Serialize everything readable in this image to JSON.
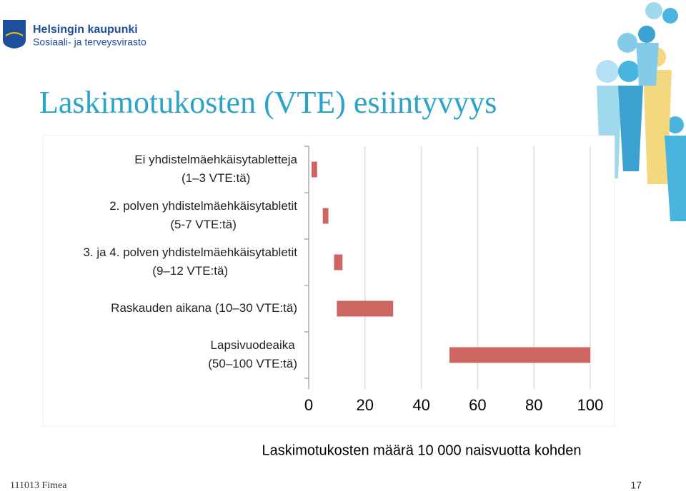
{
  "slide": {
    "logo_line1": "Helsingin kaupunki",
    "logo_line2": "Sosiaali- ja terveysvirasto",
    "footer": "111013 Fimea",
    "page_number": "17"
  },
  "chart_data": {
    "type": "floating-bar",
    "title": "Laskimotukosten (VTE) esiintyvyys",
    "xlabel": "Laskimotukosten määrä 10 000 naisvuotta kohden",
    "categories": [
      [
        "Ei yhdistelmäehkäisytabletteja",
        "(1–3 VTE:tä)"
      ],
      [
        "2. polven yhdistelmäehkäisytabletit",
        "(5-7 VTE:tä)"
      ],
      [
        "3. ja 4. polven yhdistelmäehkäisytabletit",
        "(9–12 VTE:tä)"
      ],
      [
        "Raskauden aikana (10–30 VTE:tä)"
      ],
      [
        "Lapsivuodeaika",
        "(50–100 VTE:tä)"
      ]
    ],
    "starts": [
      1,
      5,
      9,
      10,
      50
    ],
    "ends": [
      3,
      7,
      12,
      30,
      100
    ],
    "color": "#cd6660",
    "xlim": [
      0,
      100
    ],
    "xticks": [
      0,
      20,
      40,
      60,
      80,
      100
    ],
    "grid": true
  }
}
